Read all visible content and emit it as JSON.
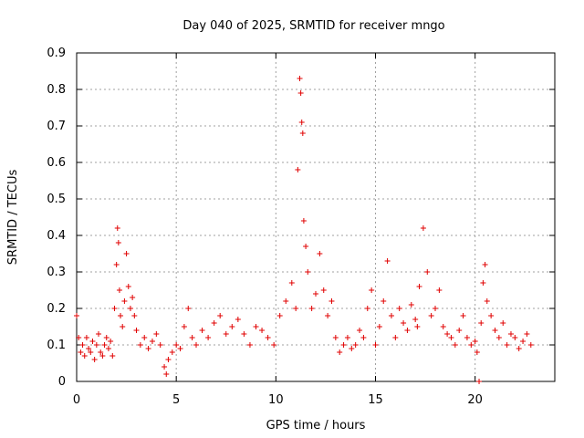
{
  "chart_data": {
    "type": "scatter",
    "title": "Day 040 of 2025, SRMTID for receiver mngo",
    "xlabel": "GPS time / hours",
    "ylabel": "SRMTID / TECUs",
    "xlim": [
      0,
      24
    ],
    "ylim": [
      0,
      0.9
    ],
    "xticks": [
      "0",
      "5",
      "10",
      "15",
      "20"
    ],
    "yticks": [
      "0",
      "0.1",
      "0.2",
      "0.3",
      "0.4",
      "0.5",
      "0.6",
      "0.7",
      "0.8",
      "0.9"
    ],
    "grid": true,
    "marker": "+",
    "color": "#e00000",
    "series": [
      {
        "name": "SRMTID",
        "x": [
          0.0,
          0.1,
          0.2,
          0.3,
          0.4,
          0.5,
          0.6,
          0.7,
          0.8,
          0.9,
          1.0,
          1.1,
          1.2,
          1.3,
          1.4,
          1.5,
          1.6,
          1.7,
          1.8,
          1.9,
          2.0,
          2.05,
          2.1,
          2.15,
          2.2,
          2.3,
          2.4,
          2.5,
          2.6,
          2.7,
          2.8,
          2.9,
          3.0,
          3.2,
          3.4,
          3.6,
          3.8,
          4.0,
          4.2,
          4.4,
          4.5,
          4.6,
          4.8,
          5.0,
          5.2,
          5.4,
          5.6,
          5.8,
          6.0,
          6.3,
          6.6,
          6.9,
          7.2,
          7.5,
          7.8,
          8.1,
          8.4,
          8.7,
          9.0,
          9.3,
          9.6,
          9.9,
          10.2,
          10.5,
          10.8,
          11.0,
          11.1,
          11.2,
          11.25,
          11.3,
          11.35,
          11.4,
          11.5,
          11.6,
          11.8,
          12.0,
          12.2,
          12.4,
          12.6,
          12.8,
          13.0,
          13.2,
          13.4,
          13.6,
          13.8,
          14.0,
          14.2,
          14.4,
          14.6,
          14.8,
          15.0,
          15.2,
          15.4,
          15.6,
          15.8,
          16.0,
          16.2,
          16.4,
          16.6,
          16.8,
          17.0,
          17.1,
          17.2,
          17.4,
          17.6,
          17.8,
          18.0,
          18.2,
          18.4,
          18.6,
          18.8,
          19.0,
          19.2,
          19.4,
          19.6,
          19.8,
          20.0,
          20.1,
          20.2,
          20.3,
          20.4,
          20.5,
          20.6,
          20.8,
          21.0,
          21.2,
          21.4,
          21.6,
          21.8,
          22.0,
          22.2,
          22.4,
          22.6,
          22.8
        ],
        "y": [
          0.18,
          0.12,
          0.08,
          0.1,
          0.07,
          0.12,
          0.09,
          0.08,
          0.11,
          0.06,
          0.1,
          0.13,
          0.08,
          0.07,
          0.1,
          0.12,
          0.09,
          0.11,
          0.07,
          0.2,
          0.32,
          0.42,
          0.38,
          0.25,
          0.18,
          0.15,
          0.22,
          0.35,
          0.26,
          0.2,
          0.23,
          0.18,
          0.14,
          0.1,
          0.12,
          0.09,
          0.11,
          0.13,
          0.1,
          0.04,
          0.02,
          0.06,
          0.08,
          0.1,
          0.09,
          0.15,
          0.2,
          0.12,
          0.1,
          0.14,
          0.12,
          0.16,
          0.18,
          0.13,
          0.15,
          0.17,
          0.13,
          0.1,
          0.15,
          0.14,
          0.12,
          0.1,
          0.18,
          0.22,
          0.27,
          0.2,
          0.58,
          0.83,
          0.79,
          0.71,
          0.68,
          0.44,
          0.37,
          0.3,
          0.2,
          0.24,
          0.35,
          0.25,
          0.18,
          0.22,
          0.12,
          0.08,
          0.1,
          0.12,
          0.09,
          0.1,
          0.14,
          0.12,
          0.2,
          0.25,
          0.1,
          0.15,
          0.22,
          0.33,
          0.18,
          0.12,
          0.2,
          0.16,
          0.14,
          0.21,
          0.17,
          0.15,
          0.26,
          0.42,
          0.3,
          0.18,
          0.2,
          0.25,
          0.15,
          0.13,
          0.12,
          0.1,
          0.14,
          0.18,
          0.12,
          0.1,
          0.11,
          0.08,
          0.0,
          0.16,
          0.27,
          0.32,
          0.22,
          0.18,
          0.14,
          0.12,
          0.16,
          0.1,
          0.13,
          0.12,
          0.09,
          0.11,
          0.13,
          0.1
        ]
      }
    ]
  }
}
